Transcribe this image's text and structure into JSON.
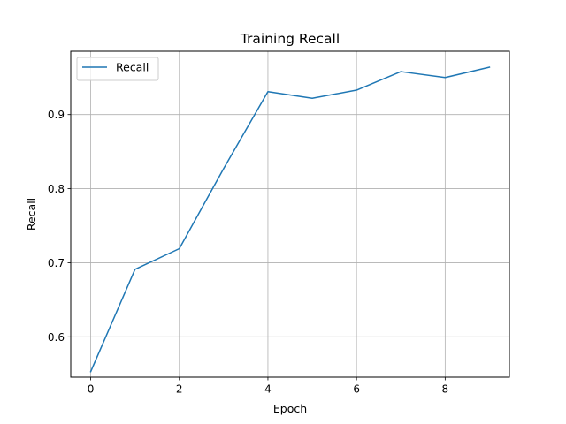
{
  "chart_data": {
    "type": "line",
    "title": "Training Recall",
    "xlabel": "Epoch",
    "ylabel": "Recall",
    "xlim": [
      -0.45,
      9.45
    ],
    "ylim": [
      0.5455,
      0.9855
    ],
    "xticks": [
      0,
      2,
      4,
      6,
      8
    ],
    "yticks": [
      0.6,
      0.7,
      0.8,
      0.9
    ],
    "grid": true,
    "legend": "upper-left",
    "series": [
      {
        "name": "Recall",
        "color": "#1f77b4",
        "x": [
          0,
          1,
          2,
          3,
          4,
          5,
          6,
          7,
          8,
          9
        ],
        "y": [
          0.553,
          0.691,
          0.719,
          0.827,
          0.931,
          0.922,
          0.933,
          0.958,
          0.95,
          0.964
        ]
      }
    ]
  }
}
